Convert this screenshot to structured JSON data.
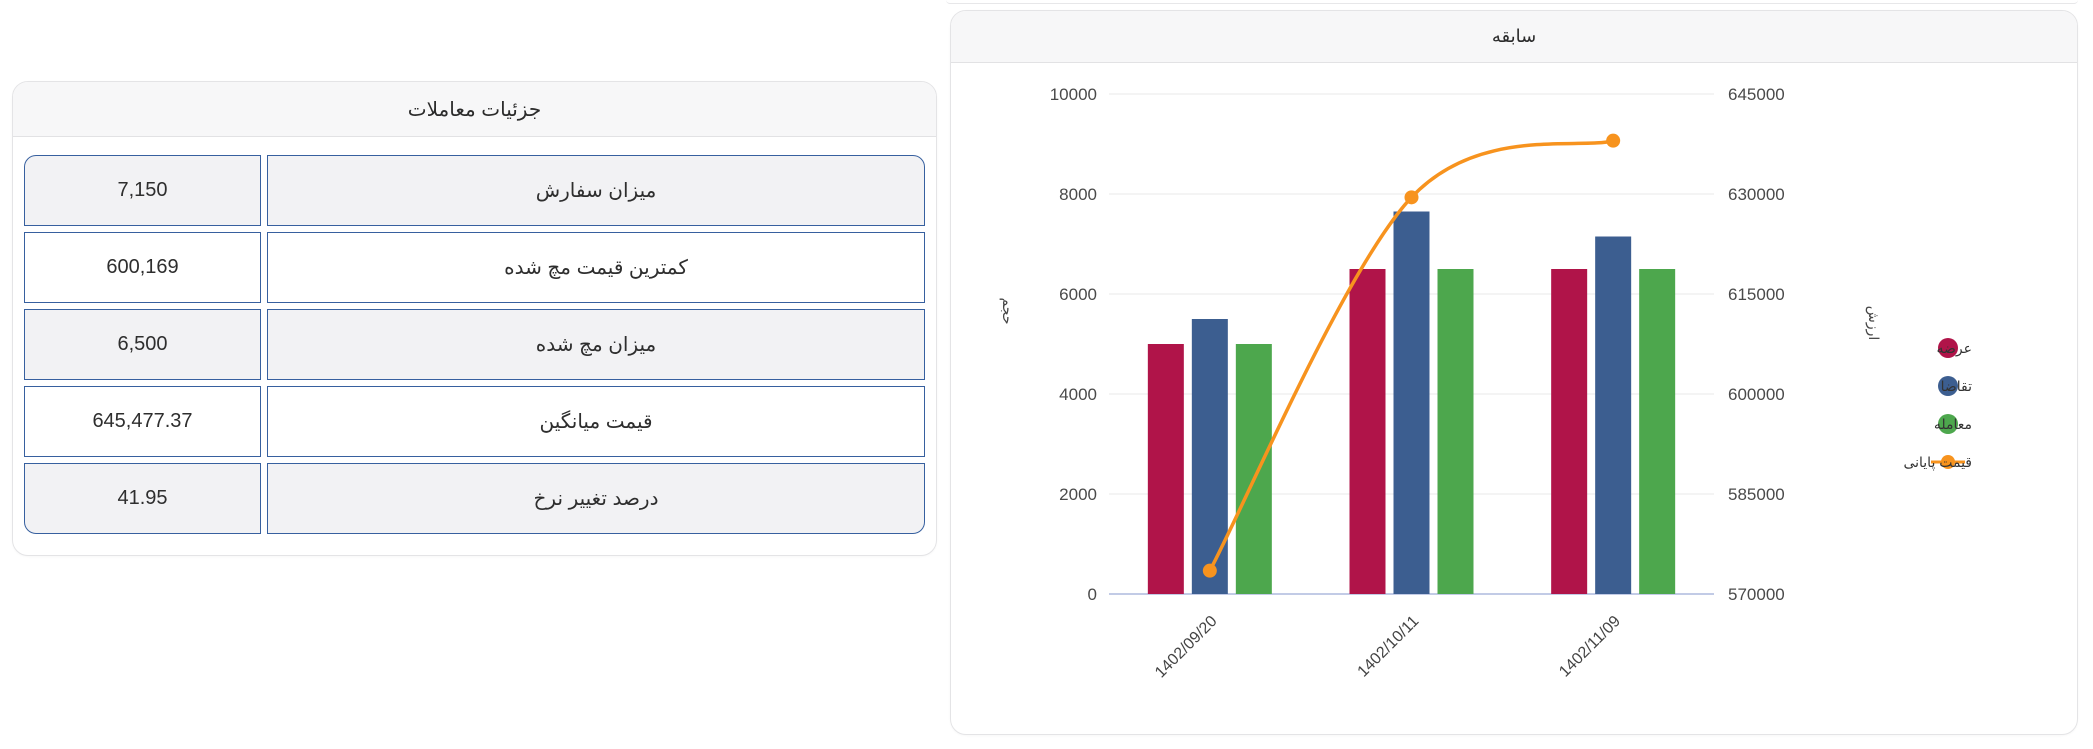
{
  "details": {
    "title": "جزئیات معاملات",
    "rows": [
      {
        "label": "میزان سفارش",
        "value": "7,150"
      },
      {
        "label": "کمترین قیمت مچ شده",
        "value": "600,169"
      },
      {
        "label": "میزان مچ شده",
        "value": "6,500"
      },
      {
        "label": "قیمت میانگین",
        "value": "645,477.37"
      },
      {
        "label": "درصد تغییر نرخ",
        "value": "41.95"
      }
    ]
  },
  "chart_data": {
    "type": "bar",
    "title": "سابقه",
    "categories": [
      "1402/09/20",
      "1402/10/11",
      "1402/11/09"
    ],
    "series": [
      {
        "name": "عرضه",
        "type": "bar",
        "color": "#b01449",
        "axis": "left",
        "values": [
          5000,
          6500,
          6500
        ]
      },
      {
        "name": "تقاضا",
        "type": "bar",
        "color": "#3c5e90",
        "axis": "left",
        "values": [
          5500,
          7650,
          7150
        ]
      },
      {
        "name": "معامله",
        "type": "bar",
        "color": "#4da74d",
        "axis": "left",
        "values": [
          5000,
          6500,
          6500
        ]
      },
      {
        "name": "قیمت پایانی",
        "type": "line",
        "color": "#f7931e",
        "axis": "right",
        "values": [
          573500,
          629500,
          638000
        ]
      }
    ],
    "left_axis": {
      "name": "حجم",
      "min": 0,
      "max": 10000,
      "step": 2000,
      "ticks": [
        0,
        2000,
        4000,
        6000,
        8000,
        10000
      ]
    },
    "right_axis": {
      "name": "ارزش",
      "min": 570000,
      "max": 645000,
      "step": 15000,
      "ticks": [
        570000,
        585000,
        600000,
        615000,
        630000,
        645000
      ]
    },
    "grid": true,
    "legend_position": "right",
    "axis_colors": {
      "grid": "#e8e8ea",
      "baseline": "#aebade",
      "tick_text": "#4a4a4a",
      "label_text": "#444444"
    }
  }
}
